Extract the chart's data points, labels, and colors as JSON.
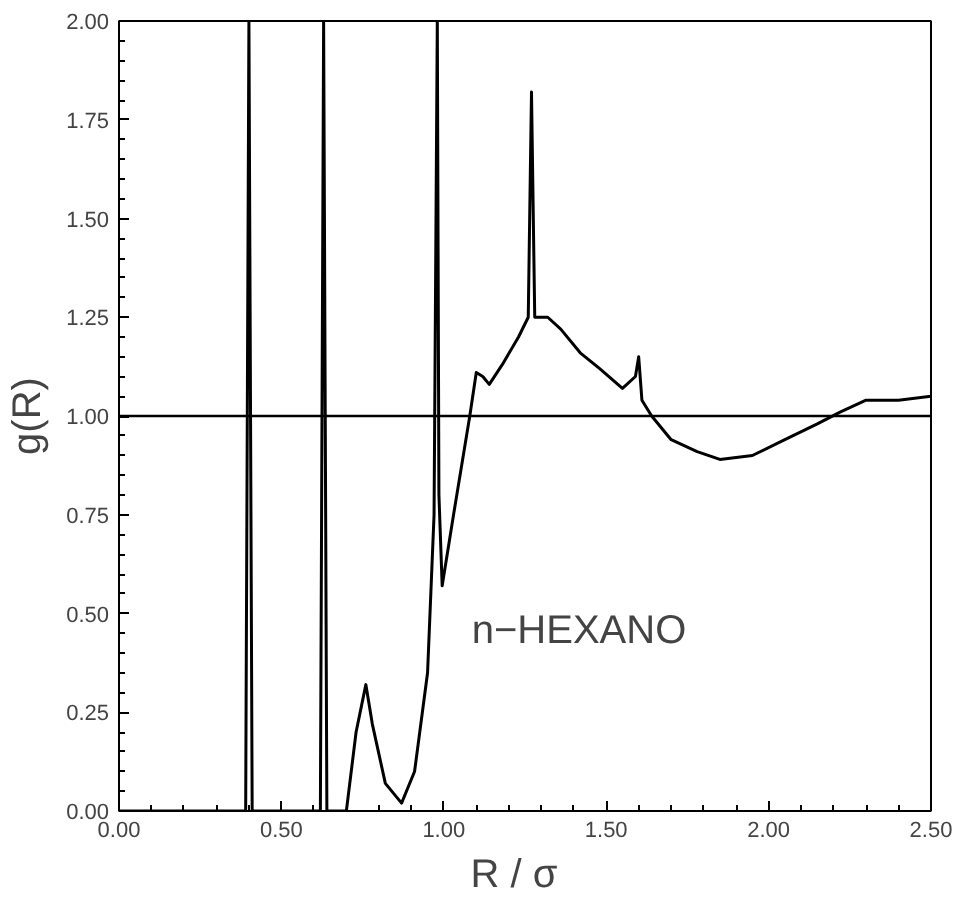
{
  "chart_data": {
    "type": "line",
    "xlabel": "R  /  σ",
    "ylabel": "g(R)",
    "x": [
      0,
      0.39,
      0.4,
      0.41,
      0.62,
      0.63,
      0.64,
      0.7,
      0.73,
      0.76,
      0.78,
      0.82,
      0.87,
      0.91,
      0.95,
      0.97,
      0.98,
      0.985,
      0.995,
      1.03,
      1.08,
      1.1,
      1.12,
      1.14,
      1.18,
      1.23,
      1.26,
      1.27,
      1.28,
      1.32,
      1.36,
      1.42,
      1.48,
      1.55,
      1.59,
      1.6,
      1.61,
      1.64,
      1.7,
      1.78,
      1.85,
      1.95,
      2.05,
      2.15,
      2.22,
      2.3,
      2.4,
      2.5
    ],
    "series": [
      {
        "color": "#000000",
        "values": [
          0,
          0,
          2.0,
          0,
          0,
          2.0,
          0,
          0,
          0.2,
          0.32,
          0.22,
          0.07,
          0.02,
          0.1,
          0.35,
          0.75,
          2.0,
          0.8,
          0.57,
          0.75,
          1.0,
          1.11,
          1.1,
          1.08,
          1.13,
          1.2,
          1.25,
          1.82,
          1.25,
          1.25,
          1.22,
          1.16,
          1.12,
          1.07,
          1.1,
          1.15,
          1.04,
          1.0,
          0.94,
          0.91,
          0.89,
          0.9,
          0.94,
          0.98,
          1.01,
          1.04,
          1.04,
          1.05
        ]
      }
    ],
    "xlim": [
      0,
      2.5
    ],
    "ylim": [
      0,
      2.0
    ],
    "xticks": [
      {
        "value": 0,
        "label": "0.00"
      },
      {
        "value": 0.5,
        "label": "0.50"
      },
      {
        "value": 1.0,
        "label": "1.00"
      },
      {
        "value": 1.5,
        "label": "1.50"
      },
      {
        "value": 2.0,
        "label": "2.00"
      },
      {
        "value": 2.5,
        "label": "2.50"
      }
    ],
    "yticks": [
      {
        "value": 0,
        "label": "0.00"
      },
      {
        "value": 0.25,
        "label": "0.25"
      },
      {
        "value": 0.5,
        "label": "0.50"
      },
      {
        "value": 0.75,
        "label": "0.75"
      },
      {
        "value": 1.0,
        "label": "1.00"
      },
      {
        "value": 1.25,
        "label": "1.25"
      },
      {
        "value": 1.5,
        "label": "1.50"
      },
      {
        "value": 1.75,
        "label": "1.75"
      },
      {
        "value": 2.0,
        "label": "2.00"
      }
    ],
    "ref_lines": [
      {
        "axis": "y",
        "value": 1.0,
        "label": null,
        "color": "#000000"
      }
    ],
    "annotations": [
      "n−HEXANO"
    ],
    "grid": false,
    "marker": "none",
    "line_style": "solid"
  }
}
